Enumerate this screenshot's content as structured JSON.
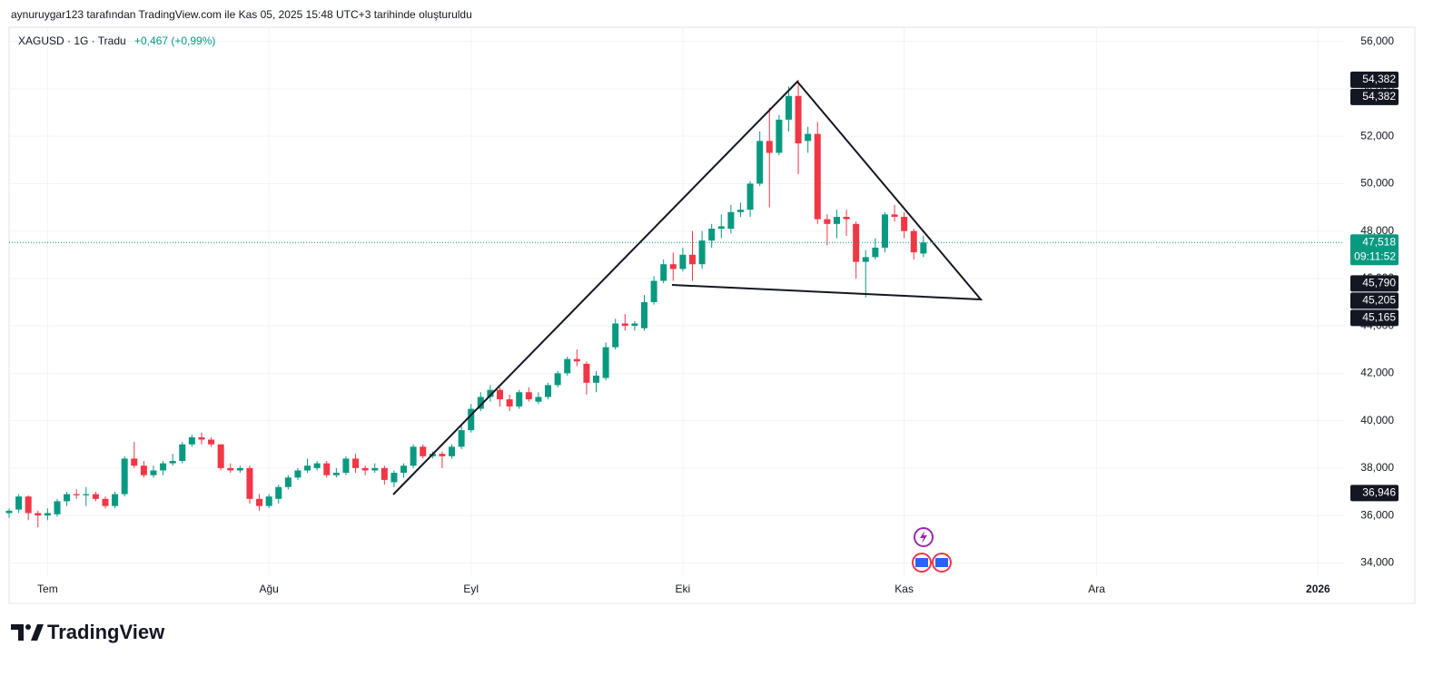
{
  "header": {
    "attribution": "aynuruygar123 tarafından TradingView.com ile Kas 05, 2025 15:48 UTC+3 tarihinde oluşturuldu"
  },
  "chart_data": {
    "type": "candlestick",
    "legend_symbol": "XAGUSD · 1G · Tradu",
    "legend_change": "+0,467 (+0,99%)",
    "up_color": "#089981",
    "down_color": "#f23645",
    "grid": true,
    "x": [
      0,
      1,
      2,
      3,
      4,
      5,
      6,
      7,
      8,
      9,
      10,
      11,
      12,
      13,
      14,
      15,
      16,
      17,
      18,
      19,
      20,
      21,
      22,
      23,
      24,
      25,
      26,
      27,
      28,
      29,
      30,
      31,
      32,
      33,
      34,
      35,
      36,
      37,
      38,
      39,
      40,
      41,
      42,
      43,
      44,
      45,
      46,
      47,
      48,
      49,
      50,
      51,
      52,
      53,
      54,
      55,
      56,
      57,
      58,
      59,
      60,
      61,
      62,
      63,
      64,
      65,
      66,
      67,
      68,
      69,
      70,
      71,
      72,
      73,
      74,
      75,
      76,
      77,
      78,
      79,
      80,
      81,
      82,
      83,
      84,
      85,
      86,
      87,
      88,
      89,
      90,
      91,
      92,
      93,
      94,
      95
    ],
    "xlim": [
      0,
      138.7
    ],
    "xticks": [
      {
        "value": 4,
        "label": "Tem"
      },
      {
        "value": 27,
        "label": "Ağu"
      },
      {
        "value": 48,
        "label": "Eyl"
      },
      {
        "value": 70,
        "label": "Eki"
      },
      {
        "value": 93,
        "label": "Kas"
      },
      {
        "value": 113,
        "label": "Ara"
      },
      {
        "value": 136,
        "label": "2026"
      }
    ],
    "ylim": [
      33400,
      56600
    ],
    "yticks": [
      {
        "value": 34000,
        "label": "34,000"
      },
      {
        "value": 36000,
        "label": "36,000"
      },
      {
        "value": 38000,
        "label": "38,000"
      },
      {
        "value": 40000,
        "label": "40,000"
      },
      {
        "value": 42000,
        "label": "42,000"
      },
      {
        "value": 44000,
        "label": "44,000"
      },
      {
        "value": 46000,
        "label": "46,000"
      },
      {
        "value": 48000,
        "label": "48,000"
      },
      {
        "value": 50000,
        "label": "50,000"
      },
      {
        "value": 52000,
        "label": "52,000"
      },
      {
        "value": 54000,
        "label": "54,000"
      },
      {
        "value": 56000,
        "label": "56,000"
      }
    ],
    "series": [
      {
        "name": "XAGUSD",
        "open": [
          36100,
          36250,
          36800,
          36100,
          36000,
          36050,
          36600,
          36900,
          36850,
          36900,
          36700,
          36400,
          36900,
          38400,
          38100,
          37700,
          37900,
          38200,
          38300,
          39000,
          39300,
          39200,
          39000,
          38000,
          37900,
          38000,
          36700,
          36400,
          36700,
          37200,
          37600,
          37900,
          38000,
          38200,
          37700,
          37800,
          38400,
          38000,
          37900,
          38000,
          37400,
          37800,
          38100,
          38900,
          38500,
          38600,
          38500,
          38900,
          39600,
          40500,
          41000,
          41300,
          40900,
          40600,
          41200,
          40800,
          41000,
          41500,
          42000,
          42600,
          42400,
          41600,
          41800,
          43100,
          44100,
          44000,
          43900,
          45000,
          45900,
          46600,
          46400,
          47000,
          46600,
          47600,
          48100,
          48100,
          48800,
          48900,
          50000,
          51800,
          51300,
          52700,
          53700,
          51800,
          52100,
          48500,
          48300,
          48600,
          48300,
          46700,
          46900,
          47300,
          48700,
          48600,
          48000,
          47051
        ],
        "high": [
          36300,
          36900,
          36850,
          36200,
          36300,
          36700,
          37000,
          37100,
          37200,
          37000,
          36800,
          37000,
          38500,
          39100,
          38300,
          38100,
          38300,
          38600,
          39100,
          39400,
          39500,
          39300,
          39000,
          38200,
          38100,
          38100,
          36900,
          36900,
          37300,
          37700,
          38000,
          38400,
          38300,
          38300,
          38000,
          38500,
          38600,
          38100,
          38200,
          38100,
          37900,
          38200,
          39000,
          39000,
          38700,
          38700,
          39000,
          39800,
          40700,
          41200,
          41500,
          41400,
          41100,
          41300,
          41400,
          41200,
          41600,
          42100,
          42700,
          43000,
          42500,
          42100,
          43300,
          44300,
          44500,
          44200,
          45300,
          46100,
          46800,
          47100,
          47300,
          48000,
          48000,
          48300,
          48700,
          49100,
          49200,
          50100,
          52200,
          53200,
          52900,
          54100,
          54382,
          52400,
          52600,
          48700,
          48900,
          48900,
          48400,
          47200,
          47700,
          48800,
          49100,
          48800,
          48100,
          47800
        ],
        "low": [
          35900,
          36100,
          35800,
          35500,
          35800,
          35950,
          36400,
          36700,
          36400,
          36600,
          36300,
          36300,
          36800,
          38000,
          37600,
          37600,
          37700,
          38100,
          38200,
          38900,
          39000,
          38900,
          37900,
          37800,
          37800,
          36500,
          36200,
          36300,
          36500,
          37100,
          37500,
          37800,
          37900,
          37600,
          37600,
          37700,
          37800,
          37700,
          37800,
          37300,
          37200,
          37600,
          38000,
          38400,
          38400,
          38000,
          38400,
          38800,
          39500,
          40400,
          40800,
          40600,
          40400,
          40500,
          40800,
          40700,
          40900,
          41400,
          41900,
          42300,
          41100,
          41200,
          41700,
          43000,
          43800,
          43800,
          43800,
          44900,
          45800,
          45900,
          46300,
          45900,
          46400,
          47300,
          47700,
          47900,
          48600,
          48600,
          49900,
          49000,
          51200,
          52200,
          50400,
          51300,
          48300,
          47400,
          47700,
          47800,
          46000,
          45205,
          46800,
          47100,
          48400,
          47700,
          46800,
          46900
        ],
        "close": [
          36200,
          36800,
          36100,
          36000,
          36100,
          36600,
          36900,
          36850,
          36900,
          36700,
          36400,
          36900,
          38400,
          38100,
          37700,
          37900,
          38200,
          38300,
          39000,
          39300,
          39200,
          39000,
          38000,
          37900,
          38000,
          36700,
          36400,
          36800,
          37200,
          37600,
          37900,
          38100,
          38200,
          37700,
          37800,
          38400,
          38000,
          37900,
          38000,
          37500,
          37800,
          38100,
          38900,
          38500,
          38600,
          38500,
          38900,
          39600,
          40500,
          41000,
          41300,
          40900,
          40600,
          41200,
          40900,
          41000,
          41500,
          42000,
          42600,
          42500,
          41600,
          41900,
          43100,
          44100,
          44000,
          44100,
          45000,
          45900,
          46600,
          46400,
          47000,
          46600,
          47600,
          48100,
          48200,
          48800,
          48900,
          50000,
          51800,
          51300,
          52700,
          53700,
          51700,
          52100,
          48500,
          48300,
          48600,
          48500,
          46700,
          46900,
          47300,
          48700,
          48600,
          48000,
          47100,
          47518
        ]
      }
    ],
    "price_labels": [
      {
        "value": 54382,
        "label": "54,382"
      },
      {
        "value": 54382,
        "label": "54,382"
      },
      {
        "value": 47518,
        "label": "47,518",
        "countdown": "09:11:52",
        "color": "#089981"
      },
      {
        "value": 45790,
        "label": "45,790"
      },
      {
        "value": 45205,
        "label": "45,205"
      },
      {
        "value": 45165,
        "label": "45,165"
      },
      {
        "value": 36946,
        "label": "36,946"
      }
    ]
  },
  "footer": {
    "brand": "TradingView"
  }
}
